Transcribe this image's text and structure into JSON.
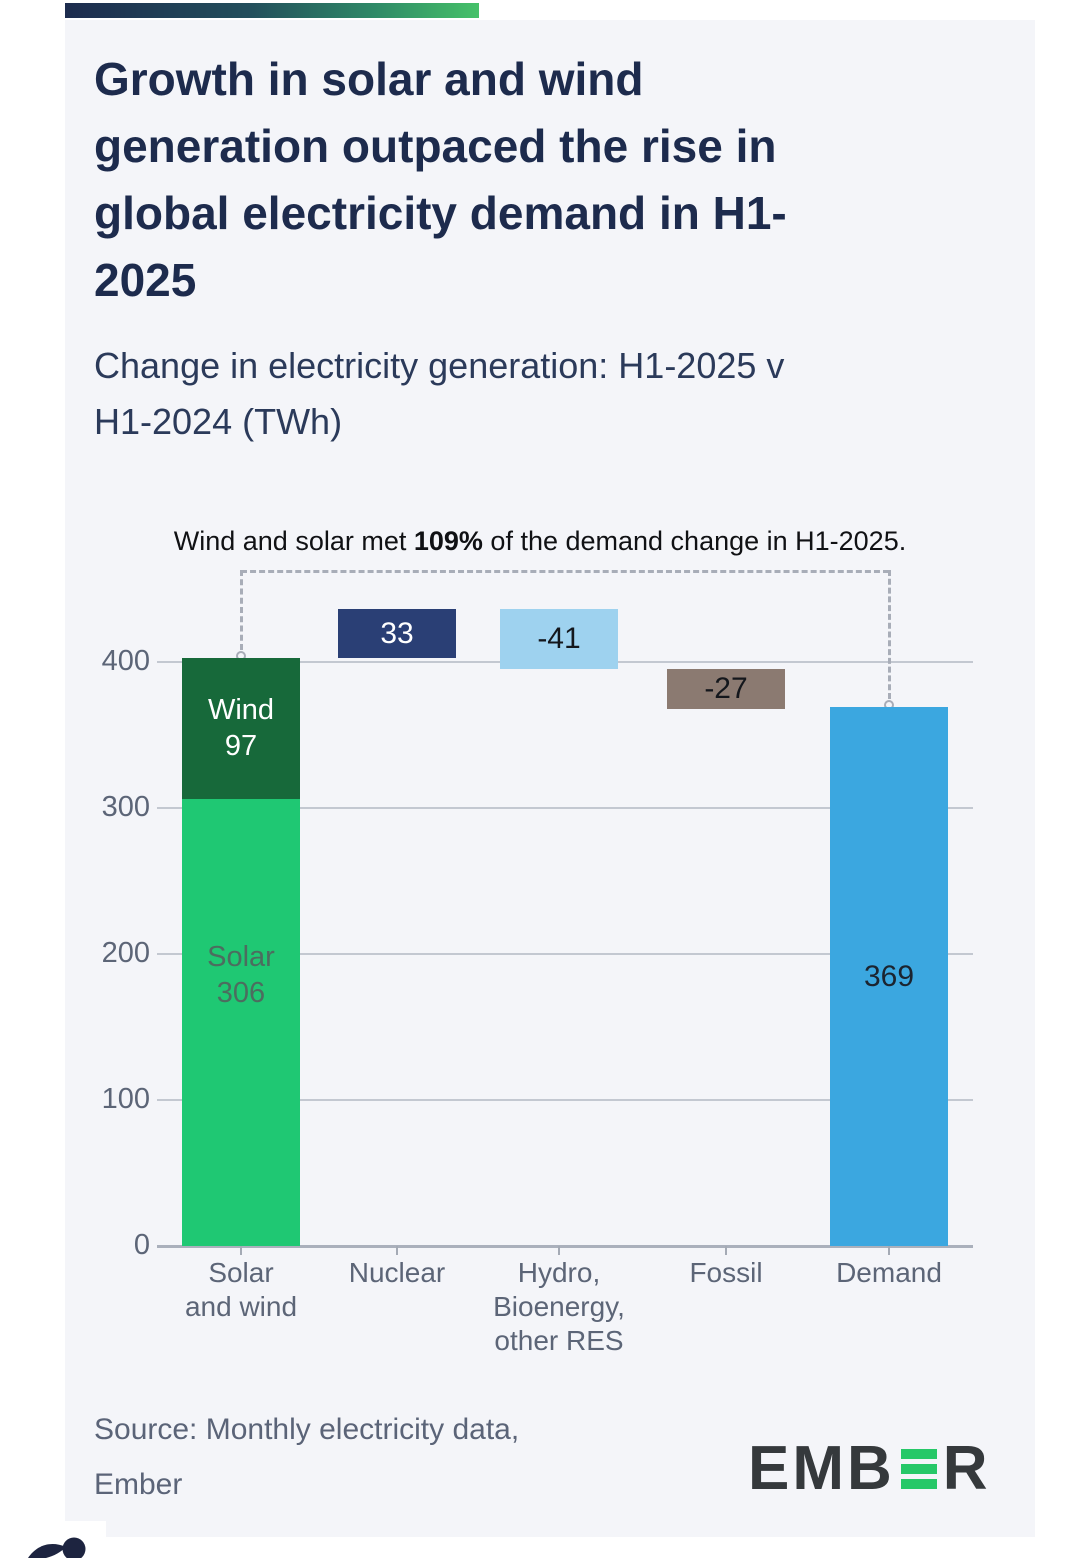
{
  "header": {
    "title": "Growth in solar and wind\ngeneration outpaced the rise in\nglobal electricity demand in H1-\n2025",
    "subtitle": "Change in electricity generation: H1-2025 v\nH1-2024 (TWh)"
  },
  "annotation": {
    "prefix": "Wind and solar met ",
    "bold": "109%",
    "suffix": " of the demand change in H1-2025."
  },
  "footer": {
    "source": "Source: Monthly electricity data,\nEmber",
    "logo_prefix": "EMB",
    "logo_suffix": "R"
  },
  "colors": {
    "page_bg": "#ffffff",
    "card_bg": "#f4f5f9",
    "accent_gradient_start": "#1d2c4e",
    "accent_gradient_end": "#46c169",
    "title_text": "#1d2b4d",
    "subtitle_text": "#2b3a5a",
    "axis_text": "#5c6577",
    "gridline": "#c3c8d1",
    "zero_line": "#aab0bc",
    "dashed_connector": "#a8adb8",
    "solar": "#1fc873",
    "wind": "#17693a",
    "nuclear": "#2a3f75",
    "hydro": "#9ed2ef",
    "fossil": "#8b7a71",
    "demand": "#3ba7e0",
    "ember_green": "#26c868",
    "ember_dark": "#35393c",
    "decorative_blob": "#1d2440"
  },
  "chart_data": {
    "type": "bar",
    "subtype": "waterfall",
    "unit": "TWh",
    "title": "Change in electricity generation: H1-2025 v H1-2024 (TWh)",
    "annotation": "Wind and solar met 109% of the demand change in H1-2025.",
    "grid": true,
    "y_ticks": [
      0,
      100,
      200,
      300,
      400
    ],
    "ylim": [
      0,
      460
    ],
    "categories": [
      "Solar and wind",
      "Nuclear",
      "Hydro, Bioenergy, other RES",
      "Fossil",
      "Demand"
    ],
    "bars": [
      {
        "category": "Solar and wind",
        "axis_label_lines": [
          "Solar",
          "and wind"
        ],
        "kind": "stacked",
        "from": 0,
        "to": 403,
        "segments": [
          {
            "name": "Solar",
            "value": 306,
            "color_key": "solar",
            "label_lines": [
              "Solar",
              "306"
            ],
            "label_color": "#4c6d5f"
          },
          {
            "name": "Wind",
            "value": 97,
            "color_key": "wind",
            "label_lines": [
              "Wind",
              "97"
            ],
            "label_color": "#ffffff"
          }
        ]
      },
      {
        "category": "Nuclear",
        "axis_label_lines": [
          "Nuclear"
        ],
        "kind": "float",
        "from": 403,
        "to": 436,
        "value": 33,
        "label": "33",
        "color_key": "nuclear",
        "label_color": "#ffffff"
      },
      {
        "category": "Hydro, Bioenergy, other RES",
        "axis_label_lines": [
          "Hydro,",
          "Bioenergy,",
          "other RES"
        ],
        "kind": "float",
        "from": 436,
        "to": 395,
        "value": -41,
        "label": "-41",
        "color_key": "hydro",
        "label_color": "#14171c"
      },
      {
        "category": "Fossil",
        "axis_label_lines": [
          "Fossil"
        ],
        "kind": "float",
        "from": 395,
        "to": 368,
        "value": -27,
        "label": "-27",
        "color_key": "fossil",
        "label_color": "#14171c"
      },
      {
        "category": "Demand",
        "axis_label_lines": [
          "Demand"
        ],
        "kind": "column",
        "from": 0,
        "to": 369,
        "value": 369,
        "label": "369",
        "color_key": "demand",
        "label_color": "#1b2430"
      }
    ],
    "connector": {
      "links": [
        "Solar and wind",
        "Demand"
      ],
      "style": "dashed"
    }
  }
}
